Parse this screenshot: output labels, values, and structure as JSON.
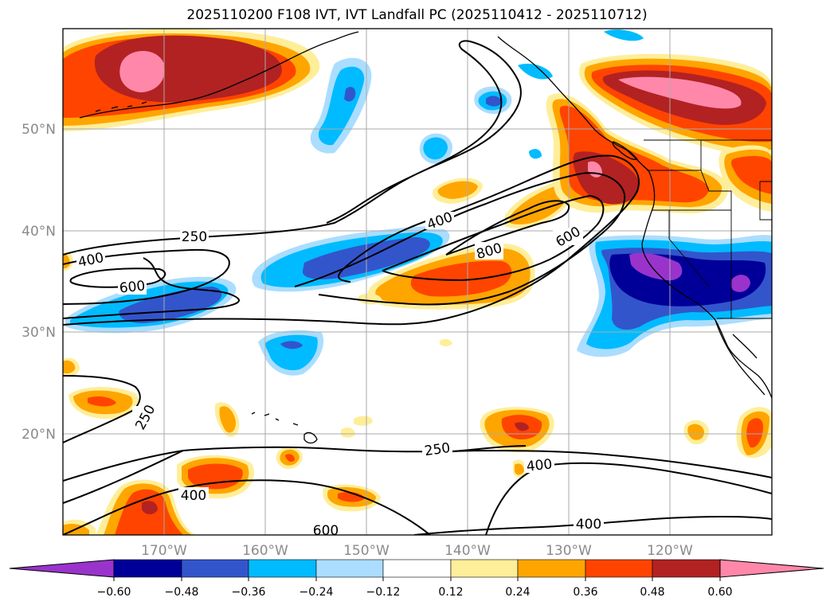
{
  "title": "2025110200 F108 IVT, IVT Landfall PC (2025110412 - 2025110712)",
  "lat_labels": [
    "50°N",
    "40°N",
    "30°N",
    "20°N"
  ],
  "lon_labels": [
    "170°W",
    "160°W",
    "150°W",
    "140°W",
    "130°W",
    "120°W"
  ],
  "colorbar": {
    "ticks": [
      "−0.60",
      "−0.48",
      "−0.36",
      "−0.24",
      "−0.12",
      "0.12",
      "0.24",
      "0.36",
      "0.48",
      "0.60"
    ],
    "colors": [
      "#9933cc",
      "#000099",
      "#3355cc",
      "#00bbff",
      "#aaddff",
      "#ffffff",
      "#ffee99",
      "#ffa500",
      "#ff4400",
      "#b22222",
      "#ff88aa"
    ]
  },
  "contour_labels": [
    "250",
    "400",
    "600",
    "400",
    "800",
    "600",
    "250",
    "400",
    "250",
    "400",
    "600",
    "400"
  ],
  "colors": {
    "pink": "#ff88aa",
    "darkred": "#b22222",
    "red": "#ff4400",
    "orange": "#ffa500",
    "yellow": "#ffee99",
    "ltblue": "#aaddff",
    "cyan": "#00bbff",
    "blue": "#3355cc",
    "navy": "#000099",
    "purple": "#9933cc"
  }
}
